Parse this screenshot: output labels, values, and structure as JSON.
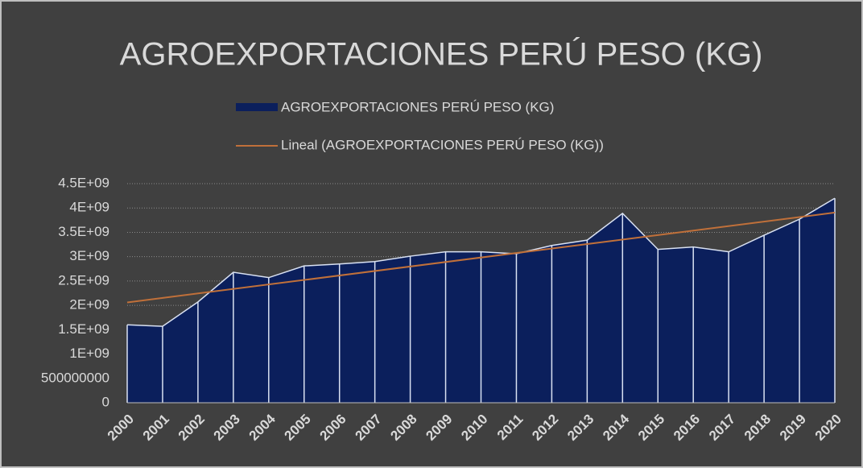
{
  "chart_data": {
    "type": "area",
    "title": "AGROEXPORTACIONES PERÚ PESO (KG)",
    "categories": [
      "2000",
      "2001",
      "2002",
      "2003",
      "2004",
      "2005",
      "2006",
      "2007",
      "2008",
      "2009",
      "2010",
      "2011",
      "2012",
      "2013",
      "2014",
      "2015",
      "2016",
      "2017",
      "2018",
      "2019",
      "2020"
    ],
    "series": [
      {
        "name": "AGROEXPORTACIONES PERÚ PESO (KG)",
        "color": "#0b1f5c",
        "values": [
          1600000000,
          1570000000,
          2070000000,
          2680000000,
          2570000000,
          2810000000,
          2850000000,
          2900000000,
          3010000000,
          3100000000,
          3100000000,
          3060000000,
          3230000000,
          3340000000,
          3890000000,
          3150000000,
          3200000000,
          3100000000,
          3440000000,
          3770000000,
          4200000000
        ]
      }
    ],
    "trendline": {
      "name": "Lineal (AGROEXPORTACIONES PERÚ PESO (KG))",
      "color": "#c0703a",
      "kind": "linear"
    },
    "ylim": [
      0,
      4500000000
    ],
    "yticks": [
      0,
      500000000,
      {
        "value": 1000000000,
        "label": "1E+09"
      },
      {
        "value": 1500000000,
        "label": "1.5E+09"
      },
      {
        "value": 2000000000,
        "label": "2E+09"
      },
      {
        "value": 2500000000,
        "label": "2.5E+09"
      },
      {
        "value": 3000000000,
        "label": "3E+09"
      },
      {
        "value": 3500000000,
        "label": "3.5E+09"
      },
      {
        "value": 4000000000,
        "label": "4E+09"
      },
      {
        "value": 4500000000,
        "label": "4.5E+09"
      }
    ],
    "grid": true,
    "legend": "top"
  }
}
